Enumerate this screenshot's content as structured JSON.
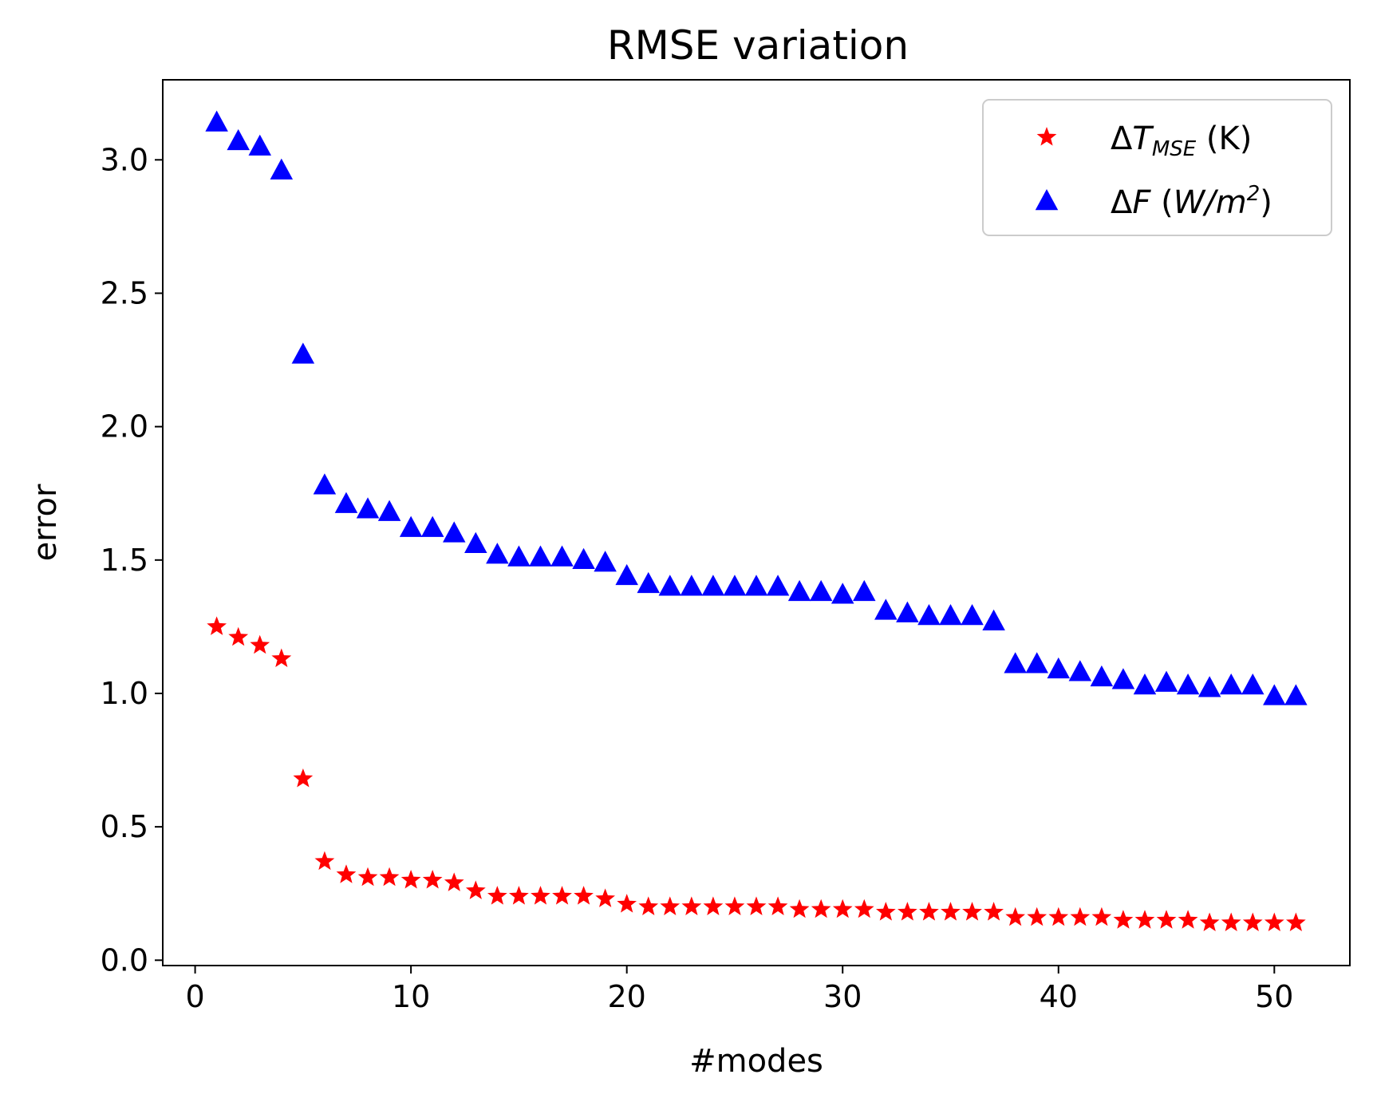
{
  "chart_data": {
    "type": "scatter",
    "title": "RMSE variation",
    "xlabel": "#modes",
    "ylabel": "error",
    "xlim": [
      -1.5,
      53.5
    ],
    "ylim": [
      -0.02,
      3.3
    ],
    "xticks": [
      0,
      10,
      20,
      30,
      40,
      50
    ],
    "xtick_labels": [
      "0",
      "10",
      "20",
      "30",
      "40",
      "50"
    ],
    "yticks": [
      0.0,
      0.5,
      1.0,
      1.5,
      2.0,
      2.5,
      3.0
    ],
    "ytick_labels": [
      "0.0",
      "0.5",
      "1.0",
      "1.5",
      "2.0",
      "2.5",
      "3.0"
    ],
    "legend_position": "top-right",
    "series": [
      {
        "name": "ΔT_MSE (K)",
        "legend_parts": {
          "delta": "Δ",
          "var": "T",
          "sub": "MSE",
          "unit": " (K)"
        },
        "marker": "star",
        "color": "#ff0000",
        "x": [
          1,
          2,
          3,
          4,
          5,
          6,
          7,
          8,
          9,
          10,
          11,
          12,
          13,
          14,
          15,
          16,
          17,
          18,
          19,
          20,
          21,
          22,
          23,
          24,
          25,
          26,
          27,
          28,
          29,
          30,
          31,
          32,
          33,
          34,
          35,
          36,
          37,
          38,
          39,
          40,
          41,
          42,
          43,
          44,
          45,
          46,
          47,
          48,
          49,
          50,
          51
        ],
        "values": [
          1.25,
          1.21,
          1.18,
          1.13,
          0.68,
          0.37,
          0.32,
          0.31,
          0.31,
          0.3,
          0.3,
          0.29,
          0.26,
          0.24,
          0.24,
          0.24,
          0.24,
          0.24,
          0.23,
          0.21,
          0.2,
          0.2,
          0.2,
          0.2,
          0.2,
          0.2,
          0.2,
          0.19,
          0.19,
          0.19,
          0.19,
          0.18,
          0.18,
          0.18,
          0.18,
          0.18,
          0.18,
          0.16,
          0.16,
          0.16,
          0.16,
          0.16,
          0.15,
          0.15,
          0.15,
          0.15,
          0.14,
          0.14,
          0.14,
          0.14,
          0.14
        ]
      },
      {
        "name": "ΔF (W/m²)",
        "legend_parts": {
          "delta": "Δ",
          "var": "F",
          "open": " (",
          "unit": "W/m",
          "sup": "2",
          "close": ")"
        },
        "marker": "triangle",
        "color": "#0000ff",
        "x": [
          1,
          2,
          3,
          4,
          5,
          6,
          7,
          8,
          9,
          10,
          11,
          12,
          13,
          14,
          15,
          16,
          17,
          18,
          19,
          20,
          21,
          22,
          23,
          24,
          25,
          26,
          27,
          28,
          29,
          30,
          31,
          32,
          33,
          34,
          35,
          36,
          37,
          38,
          39,
          40,
          41,
          42,
          43,
          44,
          45,
          46,
          47,
          48,
          49,
          50,
          51
        ],
        "values": [
          3.14,
          3.07,
          3.05,
          2.96,
          2.27,
          1.78,
          1.71,
          1.69,
          1.68,
          1.62,
          1.62,
          1.6,
          1.56,
          1.52,
          1.51,
          1.51,
          1.51,
          1.5,
          1.49,
          1.44,
          1.41,
          1.4,
          1.4,
          1.4,
          1.4,
          1.4,
          1.4,
          1.38,
          1.38,
          1.37,
          1.38,
          1.31,
          1.3,
          1.29,
          1.29,
          1.29,
          1.27,
          1.11,
          1.11,
          1.09,
          1.08,
          1.06,
          1.05,
          1.03,
          1.04,
          1.03,
          1.02,
          1.03,
          1.03,
          0.99,
          0.99
        ]
      }
    ]
  }
}
